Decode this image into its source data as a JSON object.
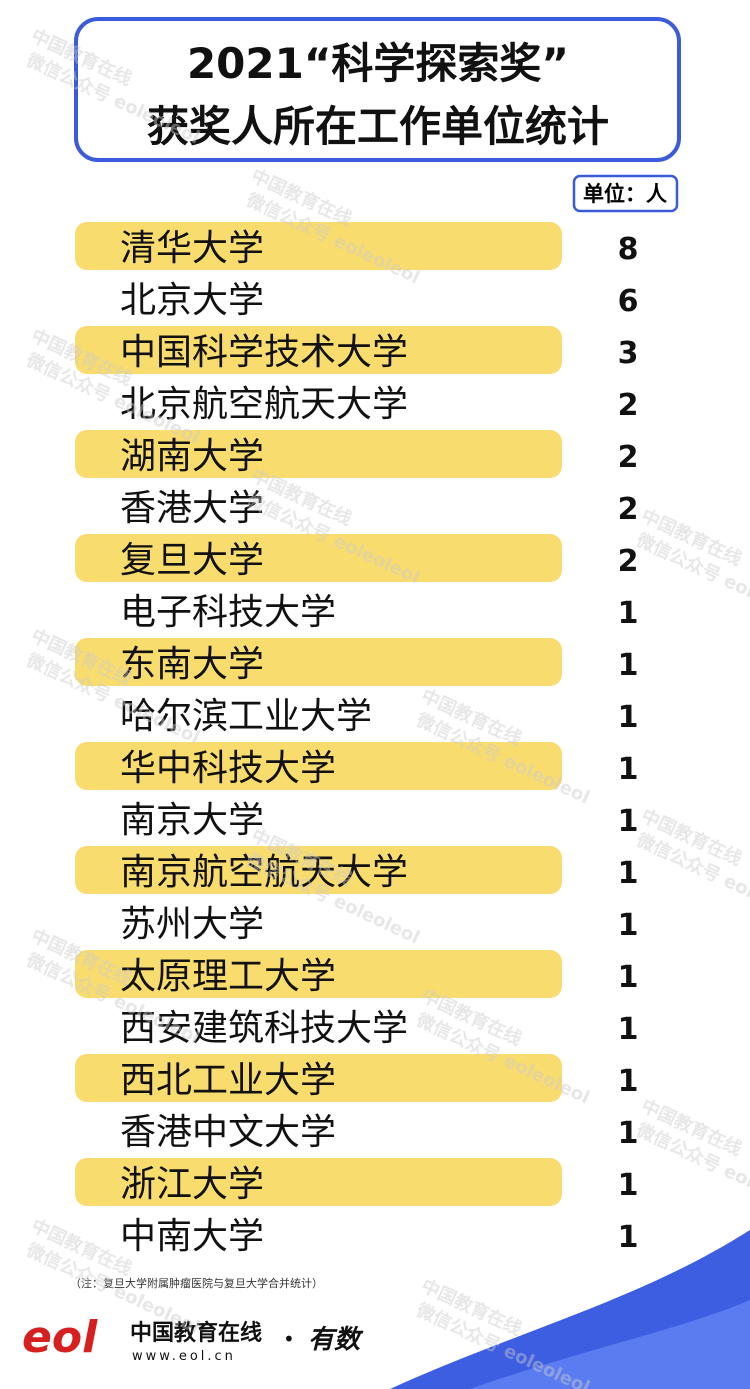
{
  "header": {
    "title_line1": "2021“科学探索奖”",
    "title_line2": "获奖人所在工作单位统计",
    "unit": "单位：人"
  },
  "table": {
    "rows": [
      [
        "清华大学",
        "8"
      ],
      [
        "北京大学",
        "6"
      ],
      [
        "中国科学技术大学",
        "3"
      ],
      [
        "北京航空航天大学",
        "2"
      ],
      [
        "湖南大学",
        "2"
      ],
      [
        "香港大学",
        "2"
      ],
      [
        "复旦大学",
        "2"
      ],
      [
        "电子科技大学",
        "1"
      ],
      [
        "东南大学",
        "1"
      ],
      [
        "哈尔滨工业大学",
        "1"
      ],
      [
        "华中科技大学",
        "1"
      ],
      [
        "南京大学",
        "1"
      ],
      [
        "南京航空航天大学",
        "1"
      ],
      [
        "苏州大学",
        "1"
      ],
      [
        "太原理工大学",
        "1"
      ],
      [
        "西安建筑科技大学",
        "1"
      ],
      [
        "西北工业大学",
        "1"
      ],
      [
        "香港中文大学",
        "1"
      ],
      [
        "浙江大学",
        "1"
      ],
      [
        "中南大学",
        "1"
      ]
    ]
  },
  "note": "（注：复旦大学附属肿瘤医院与复旦大学合并统计）",
  "footer": {
    "logo": "eol",
    "name": "中国教育在线",
    "url": "www.eol.cn",
    "dot": "•",
    "brand": "有数"
  },
  "watermark": {
    "line1": "中国教育在线",
    "line2": "微信公众号 eoleoleol"
  }
}
